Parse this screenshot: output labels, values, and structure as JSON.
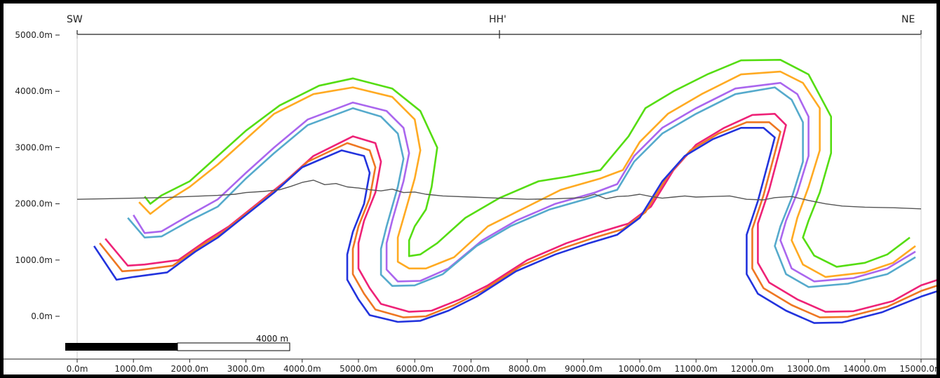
{
  "section": {
    "left_label": "SW",
    "mid_label": "HH'",
    "right_label": "NE"
  },
  "scale_bar": {
    "label": "4000 m",
    "length_m": 4000
  },
  "chart_data": {
    "type": "line",
    "title": "",
    "xlabel": "",
    "ylabel": "",
    "xlim": [
      -200,
      15300
    ],
    "ylim": [
      -650,
      5300
    ],
    "x_ticks": [
      0,
      1000,
      2000,
      3000,
      4000,
      5000,
      6000,
      7000,
      8000,
      9000,
      10000,
      11000,
      12000,
      13000,
      14000,
      15000
    ],
    "x_tick_labels": [
      "0.0m",
      "1000.0m",
      "2000.0m",
      "3000.0m",
      "4000.0m",
      "5000.0m",
      "6000.0m",
      "7000.0m",
      "8000.0m",
      "9000.0m",
      "10000.0m",
      "11000.0m",
      "12000.0m",
      "13000.0m",
      "14000.0m",
      "15000.0m"
    ],
    "y_ticks": [
      0,
      1000,
      2000,
      3000,
      4000,
      5000
    ],
    "y_tick_labels": [
      "0.0m",
      "1000.0m",
      "2000.0m",
      "3000.0m",
      "4000.0m",
      "5000.0m"
    ],
    "grid": false,
    "legend": "none",
    "series": [
      {
        "color": "#55dd11",
        "x": [
          1200,
          1300,
          1500,
          2000,
          2500,
          3000,
          3600,
          4300,
          4900,
          5600,
          6100,
          6400,
          6300,
          6200,
          6000,
          5900,
          5900,
          6100,
          6400,
          6900,
          7500,
          8200,
          8700,
          9300,
          9800,
          10100,
          10600,
          11200,
          11800,
          12500,
          13000,
          13400,
          13400,
          13200,
          13000,
          12900,
          13100,
          13500,
          14000,
          14400,
          14800
        ],
        "y": [
          2130,
          2000,
          2150,
          2400,
          2850,
          3300,
          3750,
          4100,
          4230,
          4050,
          3650,
          3000,
          2300,
          1900,
          1600,
          1350,
          1070,
          1100,
          1300,
          1750,
          2100,
          2400,
          2480,
          2600,
          3200,
          3700,
          4000,
          4300,
          4550,
          4560,
          4300,
          3550,
          2900,
          2200,
          1700,
          1400,
          1080,
          880,
          950,
          1100,
          1400
        ]
      },
      {
        "color": "#ffaa22",
        "x": [
          1100,
          1300,
          1600,
          2000,
          2500,
          3000,
          3500,
          4200,
          4900,
          5600,
          6000,
          6100,
          6000,
          5900,
          5800,
          5700,
          5700,
          5900,
          6200,
          6700,
          7300,
          8000,
          8600,
          9300,
          9700,
          10000,
          10500,
          11100,
          11800,
          12500,
          12900,
          13200,
          13200,
          13000,
          12800,
          12700,
          12900,
          13300,
          14000,
          14500,
          14900
        ],
        "y": [
          2030,
          1820,
          2050,
          2300,
          2700,
          3150,
          3600,
          3950,
          4070,
          3900,
          3500,
          2950,
          2450,
          2100,
          1750,
          1400,
          970,
          850,
          850,
          1050,
          1600,
          1950,
          2250,
          2450,
          2600,
          3100,
          3600,
          3950,
          4300,
          4350,
          4150,
          3700,
          2950,
          2300,
          1750,
          1350,
          920,
          700,
          780,
          950,
          1250
        ]
      },
      {
        "color": "#aa66ee",
        "x": [
          1000,
          1200,
          1500,
          2000,
          2500,
          3000,
          3500,
          4100,
          4900,
          5500,
          5800,
          5900,
          5800,
          5700,
          5600,
          5500,
          5500,
          5700,
          6100,
          6600,
          7200,
          7800,
          8500,
          9200,
          9600,
          9900,
          10400,
          11000,
          11700,
          12500,
          12800,
          13000,
          13000,
          12800,
          12600,
          12500,
          12700,
          13100,
          13800,
          14400,
          14900
        ],
        "y": [
          1800,
          1480,
          1510,
          1800,
          2080,
          2550,
          3000,
          3500,
          3800,
          3650,
          3350,
          2900,
          2400,
          2050,
          1700,
          1300,
          830,
          620,
          630,
          850,
          1350,
          1700,
          2000,
          2200,
          2350,
          2850,
          3350,
          3700,
          4050,
          4150,
          3950,
          3550,
          2850,
          2200,
          1700,
          1350,
          850,
          620,
          680,
          850,
          1150
        ]
      },
      {
        "color": "#55aacc",
        "x": [
          900,
          1200,
          1500,
          2000,
          2500,
          3000,
          3500,
          4100,
          4900,
          5400,
          5700,
          5800,
          5700,
          5600,
          5500,
          5400,
          5400,
          5600,
          6000,
          6500,
          7100,
          7700,
          8400,
          9100,
          9600,
          9900,
          10400,
          11000,
          11700,
          12400,
          12700,
          12900,
          12900,
          12700,
          12500,
          12400,
          12600,
          13000,
          13700,
          14400,
          14900
        ],
        "y": [
          1750,
          1400,
          1420,
          1700,
          1950,
          2450,
          2900,
          3400,
          3700,
          3550,
          3250,
          2800,
          2300,
          1950,
          1600,
          1200,
          740,
          540,
          550,
          750,
          1250,
          1600,
          1900,
          2100,
          2250,
          2750,
          3250,
          3600,
          3950,
          4070,
          3850,
          3450,
          2750,
          2100,
          1600,
          1250,
          750,
          520,
          580,
          750,
          1050
        ]
      },
      {
        "color": "#ee2277",
        "x": [
          500,
          900,
          1200,
          1800,
          2300,
          2700,
          3200,
          3700,
          4200,
          4900,
          5300,
          5400,
          5300,
          5100,
          5000,
          5000,
          5200,
          5400,
          5900,
          6300,
          6800,
          7300,
          8000,
          8700,
          9300,
          9800,
          10200,
          10600,
          11000,
          11500,
          12000,
          12400,
          12600,
          12500,
          12300,
          12100,
          12100,
          12300,
          12800,
          13300,
          13800,
          14500,
          15000,
          15300
        ],
        "y": [
          1380,
          900,
          920,
          1000,
          1350,
          1600,
          2000,
          2400,
          2850,
          3200,
          3080,
          2750,
          2200,
          1700,
          1300,
          850,
          500,
          220,
          80,
          100,
          300,
          550,
          1000,
          1300,
          1500,
          1650,
          1950,
          2600,
          3050,
          3350,
          3580,
          3600,
          3400,
          3000,
          2250,
          1650,
          950,
          600,
          300,
          80,
          90,
          270,
          550,
          650
        ]
      },
      {
        "color": "#ee7722",
        "x": [
          400,
          800,
          1100,
          1700,
          2200,
          2600,
          3100,
          3600,
          4100,
          4800,
          5200,
          5300,
          5200,
          5000,
          4900,
          4900,
          5100,
          5300,
          5800,
          6200,
          6700,
          7200,
          7900,
          8600,
          9200,
          9700,
          10100,
          10500,
          10900,
          11400,
          11900,
          12300,
          12500,
          12400,
          12200,
          12000,
          12000,
          12200,
          12700,
          13200,
          13700,
          14400,
          15000,
          15300
        ],
        "y": [
          1300,
          800,
          820,
          900,
          1250,
          1500,
          1900,
          2300,
          2750,
          3080,
          2950,
          2650,
          2100,
          1600,
          1200,
          750,
          400,
          120,
          -20,
          0,
          200,
          450,
          900,
          1200,
          1400,
          1550,
          1850,
          2500,
          2950,
          3250,
          3450,
          3450,
          3280,
          2900,
          2150,
          1550,
          850,
          500,
          200,
          -20,
          -10,
          170,
          450,
          550
        ]
      },
      {
        "color": "#2233dd",
        "x": [
          300,
          700,
          1000,
          1600,
          2100,
          2500,
          3000,
          3500,
          4000,
          4700,
          5100,
          5200,
          5100,
          4900,
          4800,
          4800,
          5000,
          5200,
          5700,
          6100,
          6600,
          7100,
          7800,
          8500,
          9100,
          9600,
          10000,
          10400,
          10800,
          11300,
          11800,
          12200,
          12400,
          12300,
          12100,
          11900,
          11900,
          12100,
          12600,
          13100,
          13600,
          14300,
          15000,
          15300
        ],
        "y": [
          1250,
          650,
          700,
          780,
          1150,
          1400,
          1800,
          2200,
          2650,
          2950,
          2850,
          2550,
          2000,
          1500,
          1100,
          650,
          300,
          20,
          -100,
          -80,
          100,
          350,
          800,
          1100,
          1300,
          1450,
          1750,
          2400,
          2850,
          3150,
          3350,
          3350,
          3180,
          2800,
          2050,
          1450,
          750,
          400,
          100,
          -120,
          -110,
          70,
          350,
          450
        ]
      },
      {
        "color": "#555555",
        "x": [
          0,
          500,
          1000,
          1500,
          2000,
          2500,
          2800,
          3000,
          3300,
          3600,
          3800,
          4000,
          4200,
          4400,
          4600,
          4800,
          5000,
          5200,
          5400,
          5600,
          5800,
          6000,
          6200,
          6500,
          7000,
          7500,
          8000,
          8500,
          9000,
          9200,
          9400,
          9600,
          9800,
          10000,
          10200,
          10400,
          10600,
          10800,
          11000,
          11300,
          11600,
          11900,
          12200,
          12400,
          12700,
          13000,
          13300,
          13600,
          14000,
          14500,
          15000
        ],
        "y": [
          2080,
          2090,
          2100,
          2110,
          2130,
          2150,
          2170,
          2200,
          2220,
          2250,
          2310,
          2380,
          2420,
          2340,
          2360,
          2300,
          2280,
          2250,
          2230,
          2260,
          2200,
          2210,
          2170,
          2140,
          2120,
          2100,
          2080,
          2090,
          2110,
          2170,
          2090,
          2130,
          2140,
          2170,
          2130,
          2100,
          2120,
          2140,
          2120,
          2130,
          2140,
          2080,
          2070,
          2110,
          2130,
          2060,
          2000,
          1960,
          1940,
          1930,
          1910
        ]
      }
    ]
  }
}
